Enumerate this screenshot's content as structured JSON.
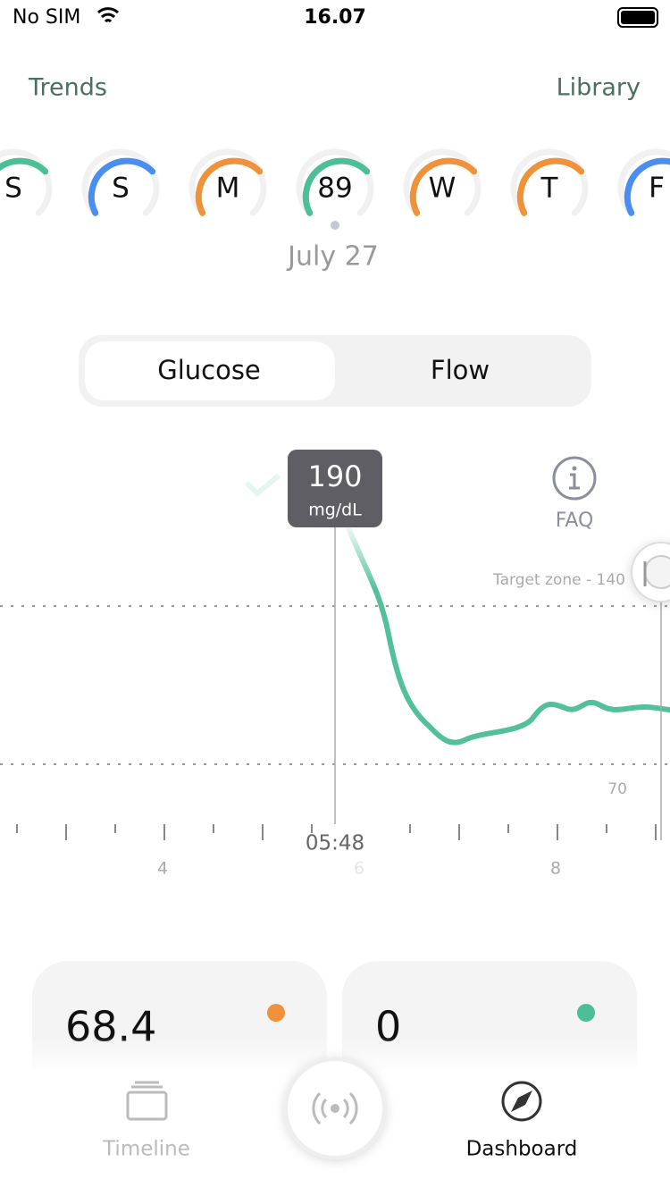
{
  "status_bar": {
    "carrier": "No SIM",
    "time": "16.07"
  },
  "nav": {
    "left": "Trends",
    "right": "Library"
  },
  "days": [
    {
      "label": "S",
      "color": "#4cbf96"
    },
    {
      "label": "S",
      "color": "#4a8ff0"
    },
    {
      "label": "M",
      "color": "#f0923a"
    },
    {
      "label": "89",
      "color": "#4cbf96"
    },
    {
      "label": "W",
      "color": "#f0923a"
    },
    {
      "label": "T",
      "color": "#f0923a"
    },
    {
      "label": "F",
      "color": "#4a8ff0"
    }
  ],
  "selected_date": "July 27",
  "tabs": [
    "Glucose",
    "Flow"
  ],
  "chart": {
    "tooltip_value": "190",
    "tooltip_unit": "mg/dL",
    "faq": "FAQ",
    "target_label": "Target zone - 140",
    "low_label": "70",
    "cursor_time": "05:48",
    "hours": [
      "4",
      "6",
      "8"
    ]
  },
  "cards": [
    {
      "value": "68.4",
      "color": "#f0923a"
    },
    {
      "value": "0",
      "color": "#4cbf96"
    }
  ],
  "tab_bar": {
    "left": "Timeline",
    "right": "Dashboard"
  }
}
